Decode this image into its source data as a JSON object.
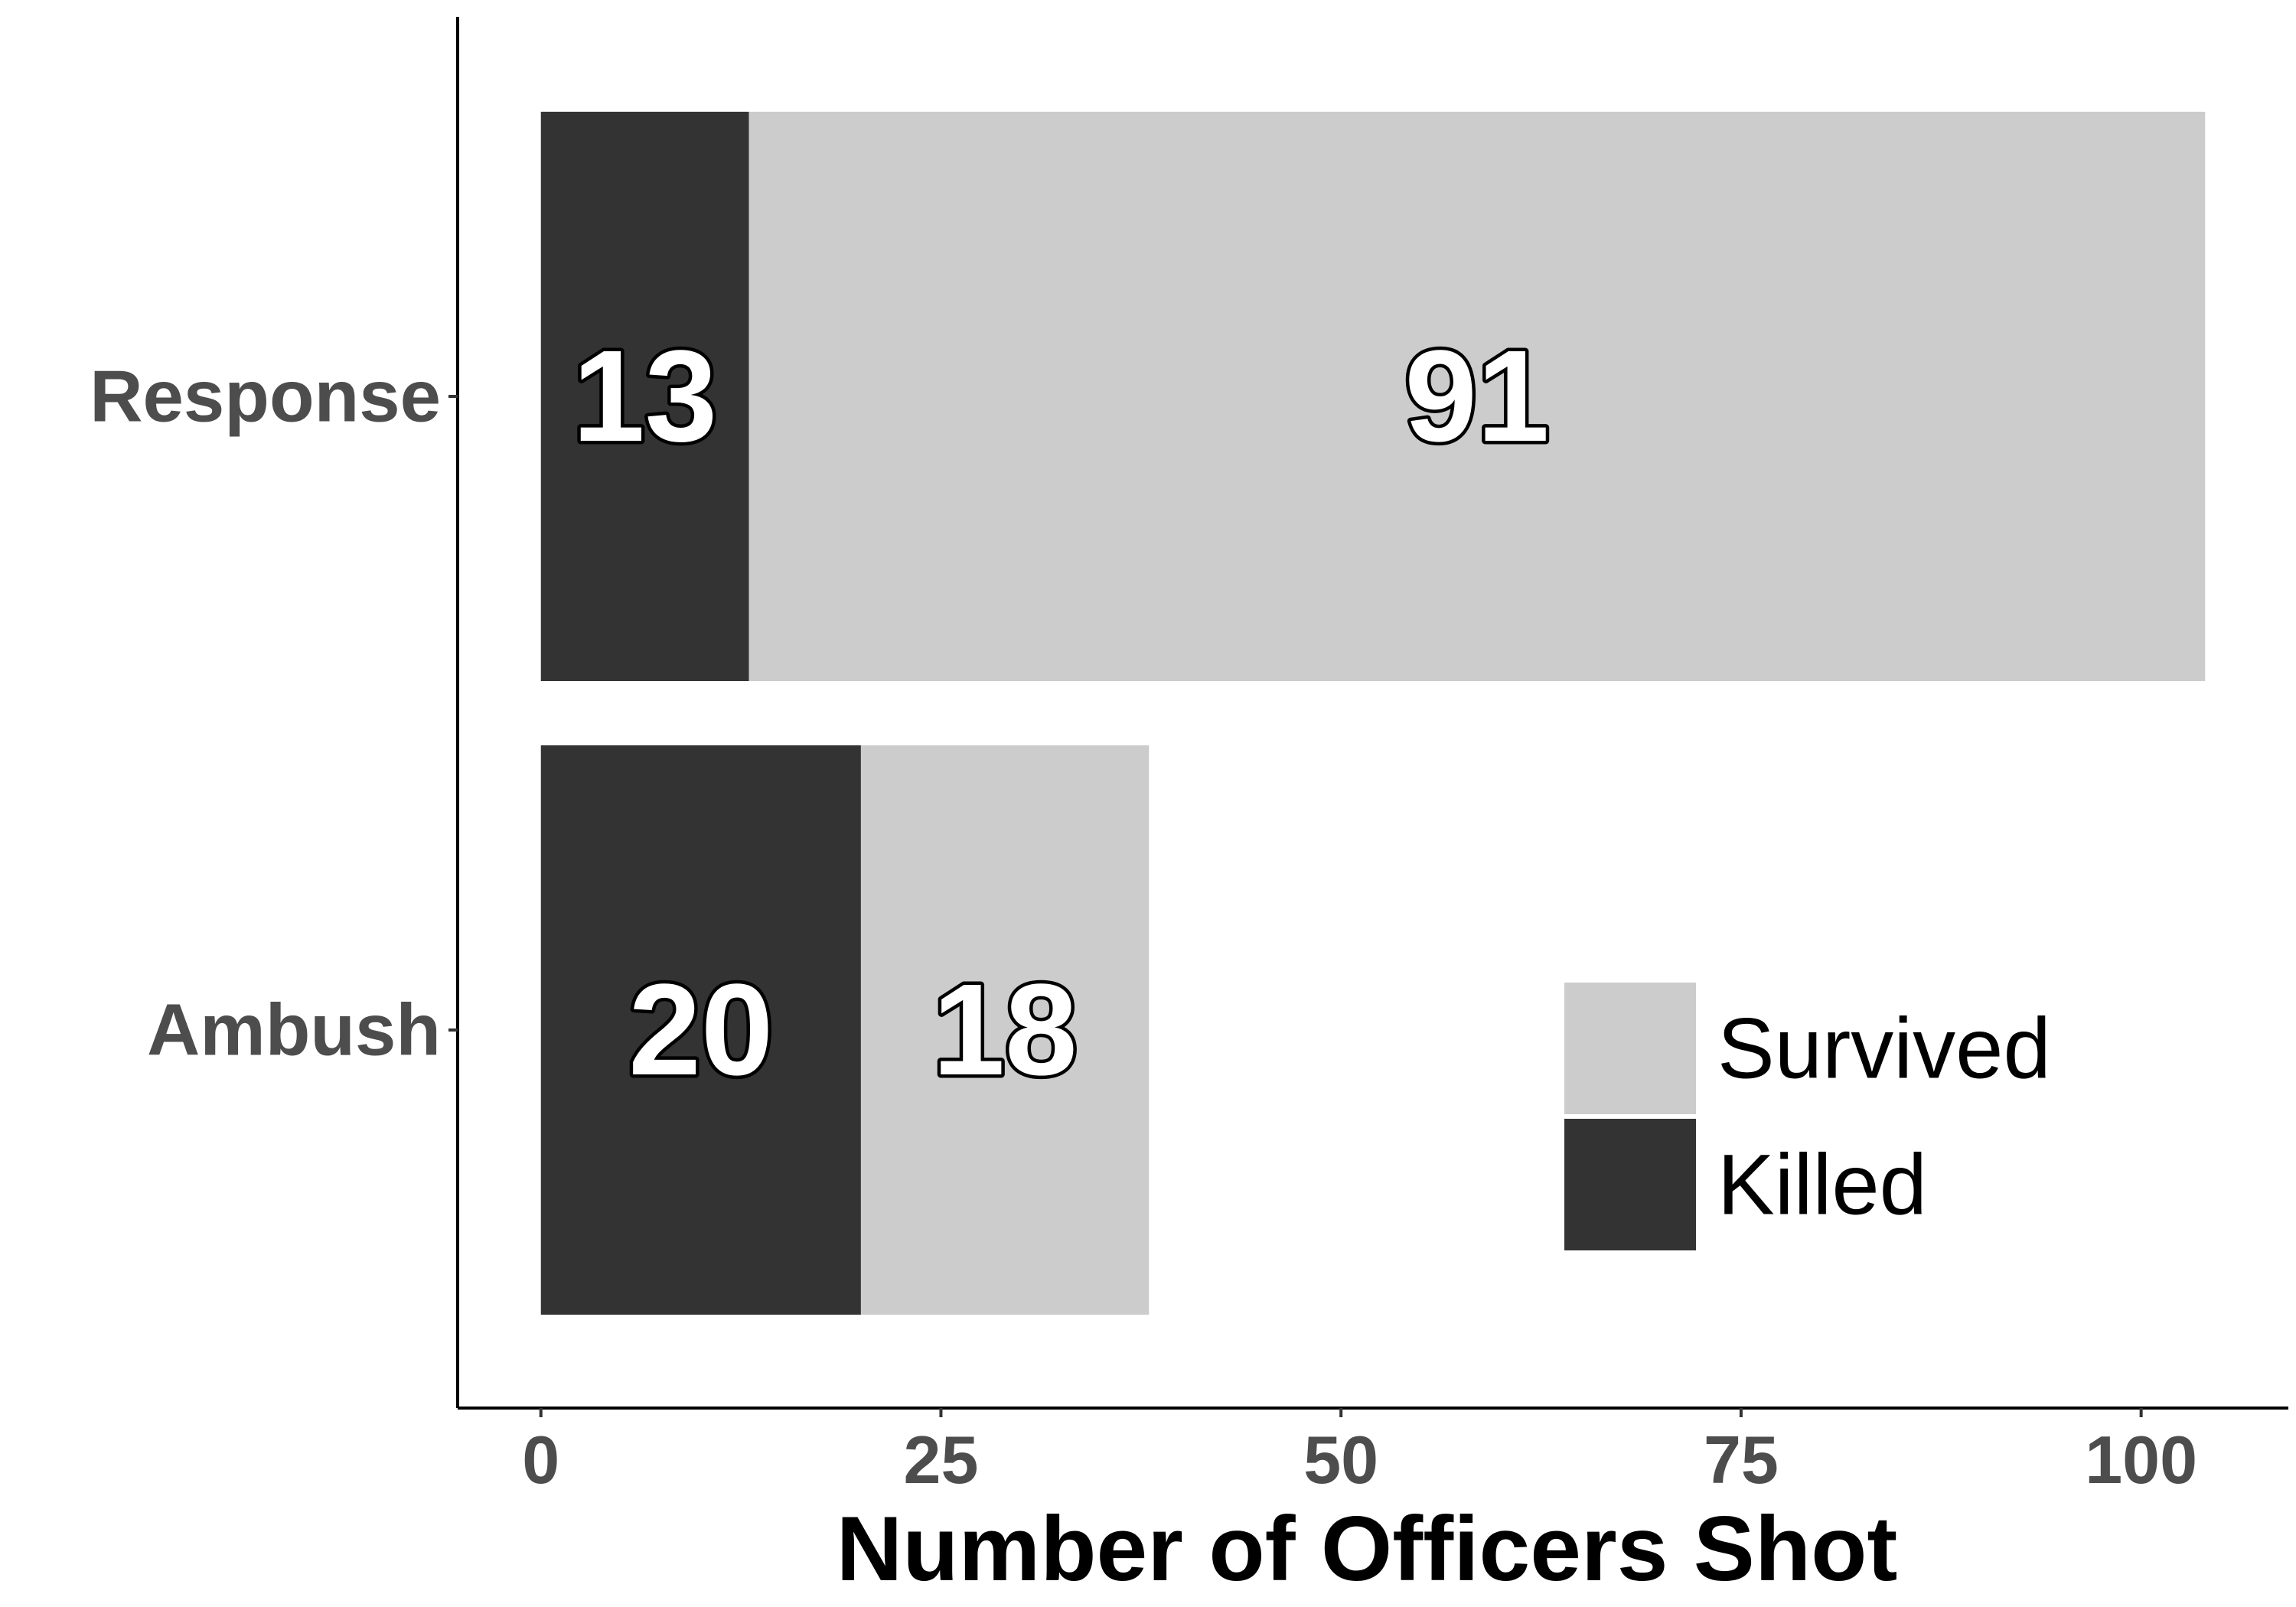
{
  "chart_data": {
    "type": "bar",
    "orientation": "horizontal",
    "stacked": true,
    "categories": [
      "Response",
      "Ambush"
    ],
    "series": [
      {
        "name": "Killed",
        "values": [
          13,
          20
        ],
        "color": "#333333"
      },
      {
        "name": "Survived",
        "values": [
          91,
          18
        ],
        "color": "#cccccc"
      }
    ],
    "xlabel": "Number of Officers Shot",
    "ylabel": "",
    "xlim": [
      -5.2,
      109.2
    ],
    "xticks": [
      0,
      25,
      50,
      75,
      100
    ],
    "grid": false,
    "legend": {
      "placement": "bottom-right",
      "entries": [
        "Survived",
        "Killed"
      ]
    },
    "data_labels": true
  }
}
